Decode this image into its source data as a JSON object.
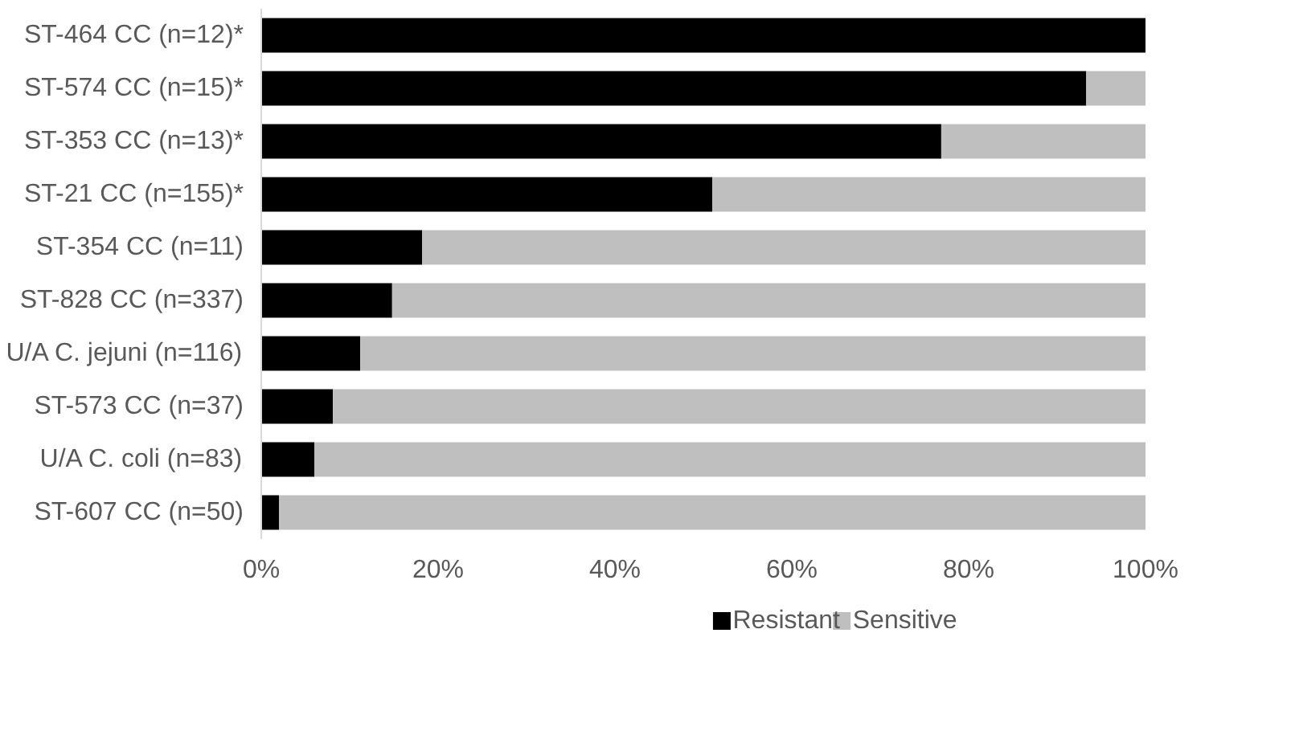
{
  "chart_data": {
    "type": "bar",
    "orientation": "horizontal",
    "stacked": true,
    "categories": [
      "ST-464 CC (n=12)*",
      "ST-574 CC (n=15)*",
      "ST-353 CC (n=13)*",
      "ST-21 CC (n=155)*",
      "ST-354 CC (n=11)",
      "ST-828 CC (n=337)",
      "U/A C. jejuni (n=116)",
      "ST-573 CC (n=37)",
      "U/A C. coli (n=83)",
      "ST-607 CC (n=50)"
    ],
    "series": [
      {
        "name": "Resistant",
        "color": "#000000",
        "values": [
          100,
          93.3,
          76.9,
          51.0,
          18.2,
          14.8,
          11.2,
          8.1,
          6.0,
          2.0
        ]
      },
      {
        "name": "Sensitive",
        "color": "#bfbfbf",
        "values": [
          0,
          6.7,
          23.1,
          49.0,
          81.8,
          85.2,
          88.8,
          91.9,
          94.0,
          98.0
        ]
      }
    ],
    "xlim": [
      0,
      100
    ],
    "xticks": [
      {
        "value": 0,
        "label": "0%"
      },
      {
        "value": 20,
        "label": "20%"
      },
      {
        "value": 40,
        "label": "40%"
      },
      {
        "value": 60,
        "label": "60%"
      },
      {
        "value": 80,
        "label": "80%"
      },
      {
        "value": 100,
        "label": "100%"
      }
    ],
    "grid": false,
    "legend": "bottom"
  }
}
